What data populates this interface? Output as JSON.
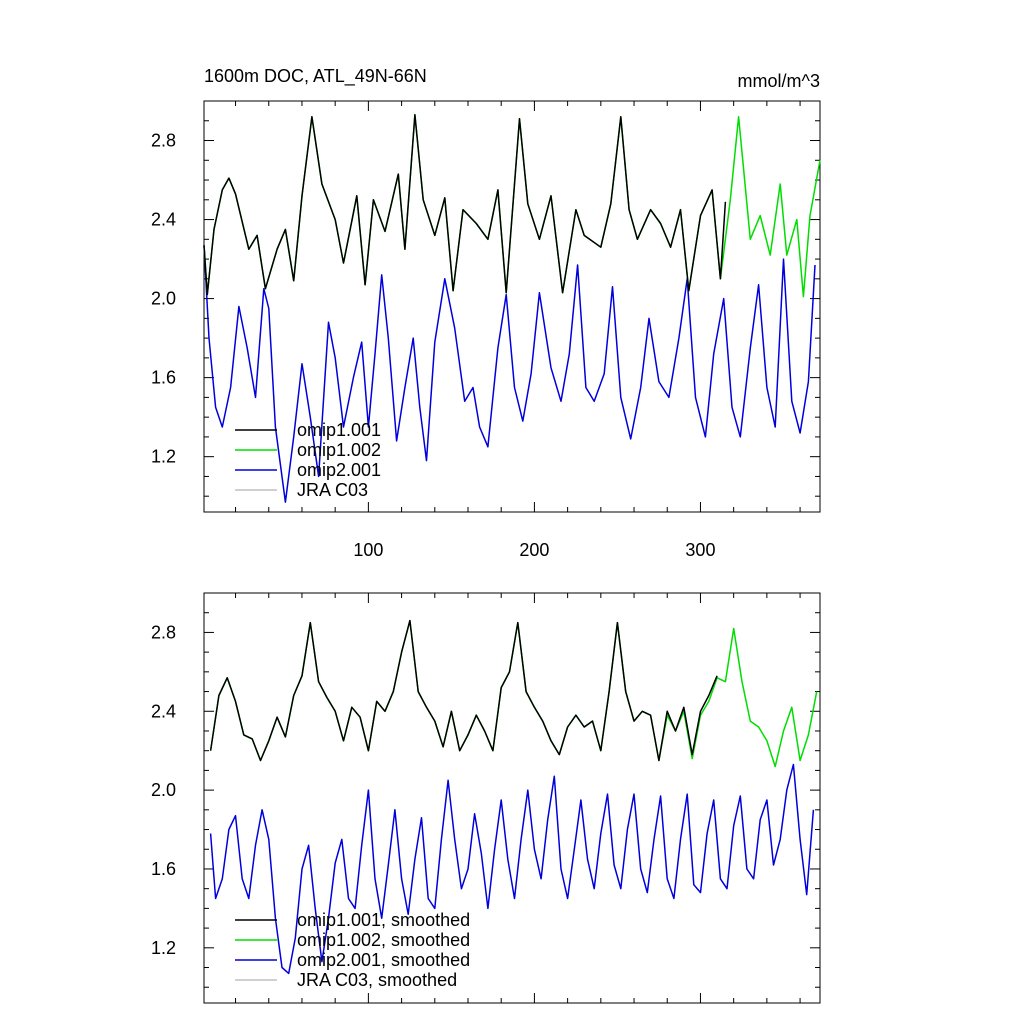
{
  "chart_data": [
    {
      "type": "line",
      "title": "1600m DOC, ATL_49N-66N",
      "units": "mmol/m^3",
      "xlim": [
        1,
        372
      ],
      "ylim": [
        0.92,
        3.0
      ],
      "xticks": [
        100,
        200,
        300
      ],
      "xtick_labels": [
        "100",
        "200",
        "300"
      ],
      "yticks": [
        1.2,
        1.6,
        2.0,
        2.4,
        2.8
      ],
      "ytick_labels": [
        "1.2",
        "1.6",
        "2.0",
        "2.4",
        "2.8"
      ],
      "legend_position": "bottom-left",
      "series": [
        {
          "name": "omip1.001",
          "color": "#000000",
          "x": [
            1,
            3,
            7,
            12,
            16,
            20,
            28,
            33,
            38,
            45,
            50,
            55,
            60,
            66,
            72,
            80,
            85,
            93,
            98,
            103,
            110,
            118,
            122,
            128,
            133,
            140,
            146,
            151,
            157,
            165,
            172,
            178,
            183,
            191,
            196,
            203,
            210,
            217,
            225,
            230,
            240,
            246,
            252,
            257,
            262,
            270,
            276,
            282,
            288,
            293,
            300,
            307,
            312,
            315
          ],
          "values": [
            2.27,
            2.02,
            2.35,
            2.55,
            2.61,
            2.53,
            2.25,
            2.32,
            2.05,
            2.25,
            2.35,
            2.09,
            2.52,
            2.92,
            2.58,
            2.4,
            2.18,
            2.52,
            2.07,
            2.5,
            2.34,
            2.63,
            2.25,
            2.93,
            2.5,
            2.32,
            2.51,
            2.04,
            2.45,
            2.38,
            2.3,
            2.55,
            2.03,
            2.91,
            2.48,
            2.3,
            2.52,
            2.03,
            2.45,
            2.32,
            2.26,
            2.48,
            2.92,
            2.45,
            2.3,
            2.45,
            2.38,
            2.26,
            2.45,
            2.04,
            2.42,
            2.55,
            2.1,
            2.49
          ]
        },
        {
          "name": "omip1.002",
          "color": "#00dd00",
          "x": [
            1,
            3,
            7,
            12,
            16,
            20,
            28,
            33,
            38,
            45,
            50,
            55,
            60,
            66,
            72,
            80,
            85,
            93,
            98,
            103,
            110,
            118,
            122,
            128,
            133,
            140,
            146,
            151,
            157,
            165,
            172,
            178,
            183,
            191,
            196,
            203,
            210,
            217,
            225,
            230,
            240,
            246,
            252,
            257,
            262,
            270,
            276,
            282,
            288,
            293,
            300,
            307,
            312,
            318,
            323,
            330,
            336,
            342,
            348,
            352,
            358,
            362,
            366,
            372
          ],
          "values": [
            2.27,
            2.02,
            2.35,
            2.55,
            2.61,
            2.53,
            2.25,
            2.32,
            2.05,
            2.25,
            2.35,
            2.09,
            2.52,
            2.92,
            2.58,
            2.4,
            2.18,
            2.52,
            2.07,
            2.5,
            2.34,
            2.63,
            2.25,
            2.93,
            2.5,
            2.32,
            2.51,
            2.04,
            2.45,
            2.38,
            2.3,
            2.55,
            2.03,
            2.91,
            2.48,
            2.3,
            2.52,
            2.03,
            2.45,
            2.32,
            2.26,
            2.48,
            2.92,
            2.45,
            2.3,
            2.45,
            2.38,
            2.26,
            2.45,
            2.04,
            2.42,
            2.55,
            2.1,
            2.5,
            2.92,
            2.3,
            2.42,
            2.22,
            2.58,
            2.22,
            2.4,
            2.01,
            2.42,
            2.7
          ]
        },
        {
          "name": "omip2.001",
          "color": "#0000dd",
          "x": [
            1,
            4,
            8,
            12,
            17,
            22,
            27,
            32,
            37,
            40,
            44,
            50,
            55,
            60,
            65,
            70,
            76,
            80,
            85,
            91,
            96,
            100,
            104,
            108,
            112,
            117,
            122,
            127,
            131,
            135,
            140,
            146,
            152,
            158,
            163,
            167,
            172,
            178,
            183,
            188,
            193,
            198,
            203,
            210,
            216,
            221,
            226,
            231,
            236,
            242,
            247,
            252,
            258,
            264,
            269,
            275,
            281,
            287,
            292,
            297,
            303,
            308,
            314,
            319,
            324,
            330,
            335,
            340,
            345,
            350,
            355,
            360,
            365,
            369
          ],
          "values": [
            2.27,
            1.8,
            1.45,
            1.35,
            1.55,
            1.96,
            1.75,
            1.5,
            2.05,
            1.95,
            1.35,
            0.97,
            1.3,
            1.67,
            1.4,
            1.1,
            1.88,
            1.7,
            1.35,
            1.6,
            1.78,
            1.35,
            1.72,
            2.12,
            1.8,
            1.28,
            1.55,
            1.8,
            1.45,
            1.18,
            1.78,
            2.1,
            1.85,
            1.48,
            1.55,
            1.35,
            1.25,
            1.75,
            2.02,
            1.55,
            1.38,
            1.62,
            2.03,
            1.65,
            1.48,
            1.72,
            2.17,
            1.55,
            1.48,
            1.62,
            2.06,
            1.5,
            1.29,
            1.55,
            1.9,
            1.58,
            1.5,
            1.8,
            2.1,
            1.5,
            1.3,
            1.72,
            2.0,
            1.45,
            1.3,
            1.75,
            2.07,
            1.55,
            1.35,
            2.2,
            1.48,
            1.32,
            1.58,
            2.17
          ]
        },
        {
          "name": "JRA C03",
          "color": "#c0c0c0",
          "x": [],
          "values": []
        }
      ]
    },
    {
      "type": "line",
      "title": "",
      "xlim": [
        1,
        372
      ],
      "ylim": [
        0.92,
        3.0
      ],
      "xticks": [
        100,
        200,
        300
      ],
      "yticks": [
        1.2,
        1.6,
        2.0,
        2.4,
        2.8
      ],
      "ytick_labels": [
        "1.2",
        "1.6",
        "2.0",
        "2.4",
        "2.8"
      ],
      "legend_position": "bottom-left",
      "series": [
        {
          "name": "omip1.001, smoothed",
          "color": "#000000",
          "x": [
            5,
            10,
            15,
            20,
            25,
            30,
            35,
            40,
            45,
            50,
            55,
            60,
            65,
            70,
            75,
            80,
            85,
            90,
            95,
            100,
            105,
            110,
            115,
            120,
            125,
            130,
            135,
            140,
            145,
            150,
            155,
            160,
            165,
            170,
            175,
            180,
            185,
            190,
            195,
            200,
            205,
            210,
            215,
            220,
            225,
            230,
            235,
            240,
            245,
            250,
            255,
            260,
            265,
            270,
            275,
            280,
            285,
            290,
            295,
            300,
            305,
            310
          ],
          "values": [
            2.2,
            2.48,
            2.57,
            2.45,
            2.28,
            2.26,
            2.15,
            2.25,
            2.37,
            2.27,
            2.48,
            2.58,
            2.85,
            2.55,
            2.47,
            2.4,
            2.25,
            2.42,
            2.37,
            2.2,
            2.45,
            2.4,
            2.5,
            2.7,
            2.86,
            2.5,
            2.42,
            2.35,
            2.22,
            2.4,
            2.2,
            2.28,
            2.38,
            2.3,
            2.2,
            2.52,
            2.6,
            2.85,
            2.5,
            2.42,
            2.35,
            2.25,
            2.18,
            2.32,
            2.38,
            2.32,
            2.35,
            2.2,
            2.5,
            2.85,
            2.5,
            2.35,
            2.4,
            2.38,
            2.15,
            2.4,
            2.3,
            2.42,
            2.18,
            2.4,
            2.48,
            2.58
          ]
        },
        {
          "name": "omip1.002, smoothed",
          "color": "#00dd00",
          "x": [
            5,
            10,
            15,
            20,
            25,
            30,
            35,
            40,
            45,
            50,
            55,
            60,
            65,
            70,
            75,
            80,
            85,
            90,
            95,
            100,
            105,
            110,
            115,
            120,
            125,
            130,
            135,
            140,
            145,
            150,
            155,
            160,
            165,
            170,
            175,
            180,
            185,
            190,
            195,
            200,
            205,
            210,
            215,
            220,
            225,
            230,
            235,
            240,
            245,
            250,
            255,
            260,
            265,
            270,
            275,
            280,
            285,
            290,
            295,
            300,
            305,
            310,
            315,
            320,
            325,
            330,
            335,
            340,
            345,
            350,
            355,
            360,
            365,
            370
          ],
          "values": [
            2.2,
            2.48,
            2.57,
            2.45,
            2.28,
            2.26,
            2.15,
            2.25,
            2.37,
            2.27,
            2.48,
            2.58,
            2.85,
            2.55,
            2.47,
            2.4,
            2.25,
            2.42,
            2.37,
            2.2,
            2.45,
            2.4,
            2.5,
            2.7,
            2.86,
            2.5,
            2.42,
            2.35,
            2.22,
            2.4,
            2.2,
            2.28,
            2.38,
            2.3,
            2.2,
            2.52,
            2.6,
            2.85,
            2.5,
            2.42,
            2.35,
            2.25,
            2.18,
            2.32,
            2.38,
            2.32,
            2.35,
            2.2,
            2.5,
            2.85,
            2.5,
            2.35,
            2.4,
            2.38,
            2.15,
            2.38,
            2.3,
            2.4,
            2.16,
            2.38,
            2.45,
            2.57,
            2.55,
            2.82,
            2.55,
            2.35,
            2.32,
            2.25,
            2.12,
            2.3,
            2.42,
            2.15,
            2.28,
            2.5
          ]
        },
        {
          "name": "omip2.001, smoothed",
          "color": "#0000dd",
          "x": [
            5,
            8,
            12,
            16,
            20,
            24,
            28,
            32,
            36,
            40,
            44,
            48,
            52,
            56,
            60,
            64,
            68,
            72,
            76,
            80,
            84,
            88,
            92,
            96,
            100,
            104,
            108,
            112,
            116,
            120,
            124,
            128,
            132,
            136,
            140,
            144,
            148,
            152,
            156,
            160,
            164,
            168,
            172,
            176,
            180,
            184,
            188,
            192,
            196,
            200,
            204,
            208,
            212,
            216,
            220,
            224,
            228,
            232,
            236,
            240,
            244,
            248,
            252,
            256,
            260,
            264,
            268,
            272,
            276,
            280,
            284,
            288,
            292,
            296,
            300,
            304,
            308,
            312,
            316,
            320,
            324,
            328,
            332,
            336,
            340,
            344,
            348,
            352,
            356,
            360,
            364,
            368
          ],
          "values": [
            1.78,
            1.45,
            1.55,
            1.8,
            1.87,
            1.55,
            1.45,
            1.72,
            1.9,
            1.75,
            1.35,
            1.1,
            1.07,
            1.25,
            1.6,
            1.72,
            1.4,
            1.13,
            1.35,
            1.63,
            1.75,
            1.45,
            1.4,
            1.72,
            2.0,
            1.55,
            1.35,
            1.62,
            1.9,
            1.55,
            1.37,
            1.65,
            1.86,
            1.45,
            1.4,
            1.75,
            2.05,
            1.75,
            1.5,
            1.6,
            1.88,
            1.68,
            1.4,
            1.7,
            1.95,
            1.65,
            1.45,
            1.75,
            2.0,
            1.7,
            1.55,
            1.85,
            2.07,
            1.6,
            1.45,
            1.7,
            1.95,
            1.65,
            1.5,
            1.78,
            1.98,
            1.62,
            1.5,
            1.8,
            1.98,
            1.6,
            1.48,
            1.75,
            1.97,
            1.55,
            1.45,
            1.75,
            1.98,
            1.52,
            1.48,
            1.78,
            1.95,
            1.55,
            1.5,
            1.82,
            1.97,
            1.6,
            1.55,
            1.85,
            1.95,
            1.62,
            1.75,
            2.0,
            2.13,
            1.75,
            1.47,
            1.9
          ]
        },
        {
          "name": "JRA C03, smoothed",
          "color": "#c0c0c0",
          "x": [],
          "values": []
        }
      ]
    }
  ]
}
